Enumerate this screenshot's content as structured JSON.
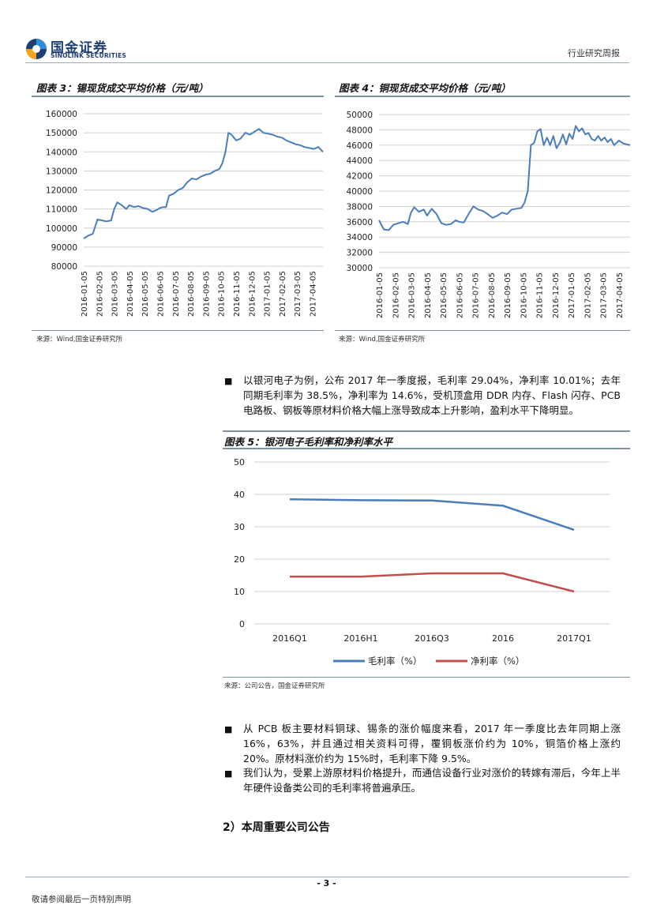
{
  "header": {
    "logo_cn": "国金证券",
    "logo_en": "SINOLINK SECURITIES",
    "report_type": "行业研究周报"
  },
  "figure3": {
    "title": "图表 3：锡现货成交平均价格（元/吨）",
    "source": "来源：Wind,国金证券研究所"
  },
  "figure4": {
    "title": "图表 4：铜现货成交平均价格（元/吨）",
    "source": "来源：Wind,国金证券研究所"
  },
  "para1": {
    "text": "以银河电子为例，公布 2017 年一季度报，毛利率 29.04%，净利率 10.01%；去年同期毛利率为 38.5%，净利率为 14.6%，受机顶盒用 DDR 内存、Flash 闪存、PCB 电路板、钢板等原材料价格大幅上涨导致成本上升影响，盈利水平下降明显。"
  },
  "figure5": {
    "title": "图表 5：银河电子毛利率和净利率水平",
    "source": "来源：公司公告，国金证券研究所"
  },
  "bullets": [
    "从 PCB 板主要材料铜球、锡条的涨价幅度来看，2017 年一季度比去年同期上涨 16%，63%，并且通过相关资料可得，覆铜板涨价约为 10%，铜箔价格上涨约 20%。原材料涨价约为 15%时，毛利率下降 9.5%。",
    "我们认为，受累上游原材料价格提升，而通信设备行业对涨价的转嫁有滞后，今年上半年硬件设备类公司的毛利率将普遍承压。"
  ],
  "section_title": "2）本周重要公司公告",
  "footer": {
    "page_number": "- 3 -",
    "note": "敬请参阅最后一页特别声明"
  },
  "chart_data": [
    {
      "type": "line",
      "id": "tin",
      "color": "#4a7ebb",
      "ylim": [
        80000,
        160000
      ],
      "yticks": [
        80000,
        90000,
        100000,
        110000,
        120000,
        130000,
        140000,
        150000,
        160000
      ],
      "xtick_labels": [
        "2016-01-05",
        "2016-02-05",
        "2016-03-05",
        "2016-04-05",
        "2016-05-05",
        "2016-06-05",
        "2016-07-05",
        "2016-08-05",
        "2016-09-05",
        "2016-10-05",
        "2016-11-05",
        "2016-12-05",
        "2017-01-05",
        "2017-02-05",
        "2017-03-05",
        "2017-04-05"
      ],
      "xrange": [
        0,
        15.7
      ],
      "points": [
        [
          0,
          94500
        ],
        [
          0.3,
          96000
        ],
        [
          0.6,
          97000
        ],
        [
          0.9,
          104500
        ],
        [
          1.2,
          104000
        ],
        [
          1.5,
          103500
        ],
        [
          1.8,
          104000
        ],
        [
          2.0,
          110000
        ],
        [
          2.2,
          113500
        ],
        [
          2.5,
          112000
        ],
        [
          2.8,
          110000
        ],
        [
          3.0,
          112000
        ],
        [
          3.3,
          111000
        ],
        [
          3.6,
          111500
        ],
        [
          3.9,
          110500
        ],
        [
          4.2,
          110000
        ],
        [
          4.5,
          108500
        ],
        [
          4.8,
          109500
        ],
        [
          5.0,
          110500
        ],
        [
          5.2,
          111000
        ],
        [
          5.4,
          111000
        ],
        [
          5.6,
          117000
        ],
        [
          5.9,
          118000
        ],
        [
          6.2,
          120000
        ],
        [
          6.5,
          121000
        ],
        [
          6.8,
          124000
        ],
        [
          7.1,
          126000
        ],
        [
          7.4,
          125500
        ],
        [
          7.7,
          127000
        ],
        [
          8.0,
          128000
        ],
        [
          8.3,
          128500
        ],
        [
          8.6,
          130000
        ],
        [
          8.9,
          131000
        ],
        [
          9.1,
          134000
        ],
        [
          9.3,
          140000
        ],
        [
          9.5,
          150000
        ],
        [
          9.7,
          149000
        ],
        [
          10.0,
          146000
        ],
        [
          10.3,
          147000
        ],
        [
          10.6,
          150000
        ],
        [
          10.9,
          149000
        ],
        [
          11.2,
          150500
        ],
        [
          11.5,
          152000
        ],
        [
          11.8,
          150000
        ],
        [
          12.1,
          149500
        ],
        [
          12.4,
          149000
        ],
        [
          12.7,
          148000
        ],
        [
          13.0,
          147500
        ],
        [
          13.3,
          146000
        ],
        [
          13.6,
          145000
        ],
        [
          13.9,
          144000
        ],
        [
          14.2,
          143500
        ],
        [
          14.5,
          142500
        ],
        [
          14.8,
          142000
        ],
        [
          15.1,
          141500
        ],
        [
          15.4,
          142500
        ],
        [
          15.7,
          140000
        ]
      ]
    },
    {
      "type": "line",
      "id": "copper",
      "color": "#4a7ebb",
      "ylim": [
        30000,
        50000
      ],
      "yticks": [
        30000,
        32000,
        34000,
        36000,
        38000,
        40000,
        42000,
        44000,
        46000,
        48000,
        50000
      ],
      "xtick_labels": [
        "2016-01-05",
        "2016-02-05",
        "2016-03-05",
        "2016-04-05",
        "2016-05-05",
        "2016-06-05",
        "2016-07-05",
        "2016-08-05",
        "2016-09-05",
        "2016-10-05",
        "2016-11-05",
        "2016-12-05",
        "2017-01-05",
        "2017-02-05",
        "2017-03-05",
        "2017-04-05"
      ],
      "xrange": [
        0,
        15.7
      ],
      "points": [
        [
          0,
          36200
        ],
        [
          0.3,
          35000
        ],
        [
          0.6,
          34900
        ],
        [
          0.9,
          35600
        ],
        [
          1.2,
          35800
        ],
        [
          1.5,
          36000
        ],
        [
          1.8,
          35700
        ],
        [
          2.0,
          37200
        ],
        [
          2.2,
          37900
        ],
        [
          2.5,
          37300
        ],
        [
          2.8,
          37600
        ],
        [
          3.0,
          36800
        ],
        [
          3.3,
          37700
        ],
        [
          3.6,
          37000
        ],
        [
          3.9,
          35800
        ],
        [
          4.2,
          35600
        ],
        [
          4.5,
          35700
        ],
        [
          4.8,
          36200
        ],
        [
          5.0,
          36000
        ],
        [
          5.3,
          35900
        ],
        [
          5.6,
          37000
        ],
        [
          5.9,
          38000
        ],
        [
          6.2,
          37600
        ],
        [
          6.5,
          37400
        ],
        [
          6.8,
          37000
        ],
        [
          7.1,
          36500
        ],
        [
          7.4,
          36800
        ],
        [
          7.7,
          37200
        ],
        [
          8.0,
          37000
        ],
        [
          8.3,
          37600
        ],
        [
          8.6,
          37700
        ],
        [
          8.9,
          37800
        ],
        [
          9.1,
          38500
        ],
        [
          9.3,
          40000
        ],
        [
          9.5,
          46000
        ],
        [
          9.7,
          46300
        ],
        [
          9.9,
          47800
        ],
        [
          10.1,
          48100
        ],
        [
          10.3,
          46000
        ],
        [
          10.5,
          47000
        ],
        [
          10.7,
          46000
        ],
        [
          10.9,
          47200
        ],
        [
          11.1,
          45600
        ],
        [
          11.3,
          46300
        ],
        [
          11.5,
          47400
        ],
        [
          11.7,
          46100
        ],
        [
          11.9,
          47500
        ],
        [
          12.1,
          46800
        ],
        [
          12.3,
          48500
        ],
        [
          12.5,
          47800
        ],
        [
          12.7,
          48200
        ],
        [
          12.9,
          47400
        ],
        [
          13.1,
          47600
        ],
        [
          13.3,
          46800
        ],
        [
          13.5,
          46600
        ],
        [
          13.7,
          47200
        ],
        [
          13.9,
          46600
        ],
        [
          14.1,
          47000
        ],
        [
          14.3,
          46400
        ],
        [
          14.5,
          46800
        ],
        [
          14.7,
          46000
        ],
        [
          15.0,
          46600
        ],
        [
          15.3,
          46200
        ],
        [
          15.7,
          46000
        ]
      ]
    },
    {
      "type": "line",
      "id": "margins",
      "categories": [
        "2016Q1",
        "2016H1",
        "2016Q3",
        "2016",
        "2017Q1"
      ],
      "ylim": [
        0,
        50
      ],
      "yticks": [
        0,
        10,
        20,
        30,
        40,
        50
      ],
      "legend_position": "bottom",
      "series": [
        {
          "name": "毛利率（%）",
          "color": "#4a7ebb",
          "values": [
            38.5,
            38.2,
            38.1,
            36.5,
            29.04
          ]
        },
        {
          "name": "净利率（%）",
          "color": "#c0504d",
          "values": [
            14.6,
            14.6,
            15.6,
            15.6,
            10.01
          ]
        }
      ]
    }
  ]
}
